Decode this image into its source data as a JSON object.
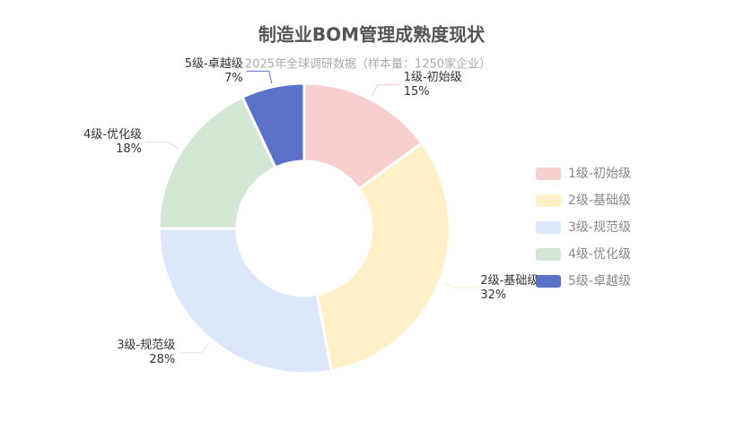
{
  "chart_data": {
    "type": "pie",
    "donut": true,
    "title": "制造业BOM管理成熟度现状",
    "subtitle": "2025年全球调研数据（样本量：1250家企业）",
    "categories": [
      "1级-初始级",
      "2级-基础级",
      "3级-规范级",
      "4级-优化级",
      "5级-卓越级"
    ],
    "values": [
      15,
      32,
      28,
      18,
      7
    ],
    "value_labels": [
      "15%",
      "32%",
      "28%",
      "18%",
      "7%"
    ],
    "colors": [
      "#f7cfcf",
      "#fff0c8",
      "#dce8fa",
      "#d4e6d4",
      "#5a72c8"
    ],
    "legend": "right"
  }
}
